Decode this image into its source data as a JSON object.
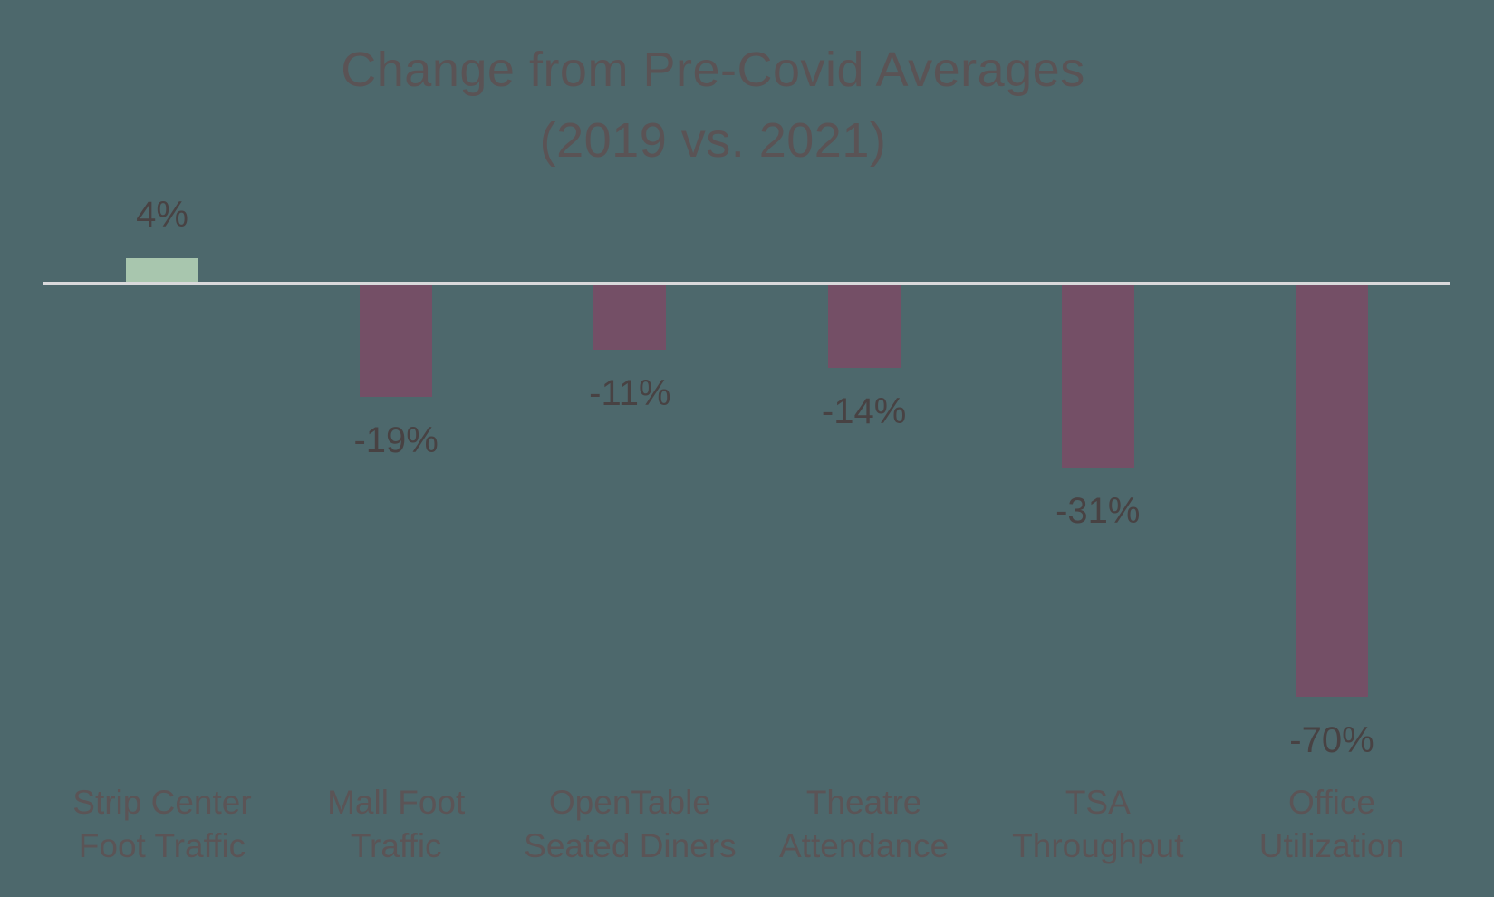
{
  "title": {
    "line1": "Change from Pre-Covid Averages",
    "line2": "(2019 vs. 2021)"
  },
  "colors": {
    "background": "#4D686C",
    "positive_bar": "#A8C6AE",
    "negative_bar": "#744F66",
    "axis_line": "#D9D9DB",
    "title_text": "#5A5355",
    "value_label_text": "#484243",
    "category_label_text": "#5B5456"
  },
  "chart_data": {
    "type": "bar",
    "title": "Change from Pre-Covid Averages (2019 vs. 2021)",
    "categories": [
      "Strip Center Foot Traffic",
      "Mall Foot Traffic",
      "OpenTable Seated Diners",
      "Theatre Attendance",
      "TSA Throughput",
      "Office Utilization"
    ],
    "category_label_lines": [
      [
        "Strip Center",
        "Foot Traffic"
      ],
      [
        "Mall Foot",
        "Traffic"
      ],
      [
        "OpenTable",
        "Seated Diners"
      ],
      [
        "Theatre",
        "Attendance"
      ],
      [
        "TSA",
        "Throughput"
      ],
      [
        "Office",
        "Utilization"
      ]
    ],
    "values": [
      4,
      -19,
      -11,
      -14,
      -31,
      -70
    ],
    "data_labels": [
      "4%",
      "-19%",
      "-11%",
      "-14%",
      "-31%",
      "-70%"
    ],
    "xlabel": "",
    "ylabel": "",
    "unit": "percent",
    "baseline": 0,
    "gridlines": false,
    "y_axis_shown": false,
    "legend": "none",
    "data_label_position": "outside end"
  }
}
